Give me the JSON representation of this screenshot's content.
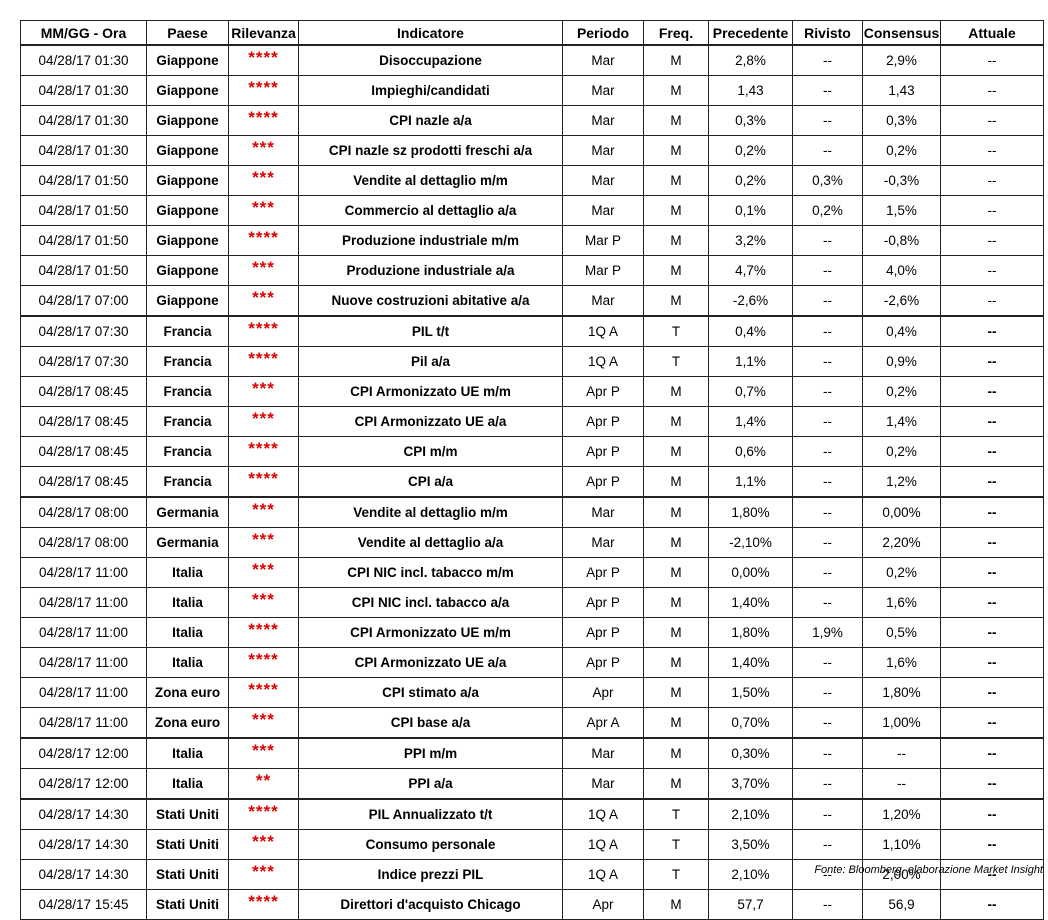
{
  "table": {
    "header": [
      "MM/GG - Ora",
      "Paese",
      "Rilevanza",
      "Indicatore",
      "Periodo",
      "Freq.",
      "Precedente",
      "Rivisto",
      "Consensus",
      "Attuale"
    ],
    "rows": [
      [
        "04/28/17 01:30",
        "Giappone",
        "****",
        "Disoccupazione",
        "Mar",
        "M",
        "2,8%",
        "--",
        "2,9%",
        "--"
      ],
      [
        "04/28/17 01:30",
        "Giappone",
        "****",
        "Impieghi/candidati",
        "Mar",
        "M",
        "1,43",
        "--",
        "1,43",
        "--"
      ],
      [
        "04/28/17 01:30",
        "Giappone",
        "****",
        "CPI nazle a/a",
        "Mar",
        "M",
        "0,3%",
        "--",
        "0,3%",
        "--"
      ],
      [
        "04/28/17 01:30",
        "Giappone",
        "***",
        "CPI nazle sz prodotti freschi a/a",
        "Mar",
        "M",
        "0,2%",
        "--",
        "0,2%",
        "--"
      ],
      [
        "04/28/17 01:50",
        "Giappone",
        "***",
        "Vendite al dettaglio m/m",
        "Mar",
        "M",
        "0,2%",
        "0,3%",
        "-0,3%",
        "--"
      ],
      [
        "04/28/17 01:50",
        "Giappone",
        "***",
        "Commercio al dettaglio a/a",
        "Mar",
        "M",
        "0,1%",
        "0,2%",
        "1,5%",
        "--"
      ],
      [
        "04/28/17 01:50",
        "Giappone",
        "****",
        "Produzione industriale m/m",
        "Mar P",
        "M",
        "3,2%",
        "--",
        "-0,8%",
        "--"
      ],
      [
        "04/28/17 01:50",
        "Giappone",
        "***",
        "Produzione industriale a/a",
        "Mar P",
        "M",
        "4,7%",
        "--",
        "4,0%",
        "--"
      ],
      [
        "04/28/17 07:00",
        "Giappone",
        "***",
        "Nuove costruzioni abitative a/a",
        "Mar",
        "M",
        "-2,6%",
        "--",
        "-2,6%",
        "--"
      ],
      [
        "04/28/17 07:30",
        "Francia",
        "****",
        "PIL t/t",
        "1Q A",
        "T",
        "0,4%",
        "--",
        "0,4%",
        "--"
      ],
      [
        "04/28/17 07:30",
        "Francia",
        "****",
        "Pil a/a",
        "1Q A",
        "T",
        "1,1%",
        "--",
        "0,9%",
        "--"
      ],
      [
        "04/28/17 08:45",
        "Francia",
        "***",
        "CPI Armonizzato UE m/m",
        "Apr P",
        "M",
        "0,7%",
        "--",
        "0,2%",
        "--"
      ],
      [
        "04/28/17 08:45",
        "Francia",
        "***",
        "CPI Armonizzato UE a/a",
        "Apr P",
        "M",
        "1,4%",
        "--",
        "1,4%",
        "--"
      ],
      [
        "04/28/17 08:45",
        "Francia",
        "****",
        "CPI m/m",
        "Apr P",
        "M",
        "0,6%",
        "--",
        "0,2%",
        "--"
      ],
      [
        "04/28/17 08:45",
        "Francia",
        "****",
        "CPI a/a",
        "Apr P",
        "M",
        "1,1%",
        "--",
        "1,2%",
        "--"
      ],
      [
        "04/28/17 08:00",
        "Germania",
        "***",
        "Vendite al dettaglio m/m",
        "Mar",
        "M",
        "1,80%",
        "--",
        "0,00%",
        "--"
      ],
      [
        "04/28/17 08:00",
        "Germania",
        "***",
        "Vendite al dettaglio a/a",
        "Mar",
        "M",
        "-2,10%",
        "--",
        "2,20%",
        "--"
      ],
      [
        "04/28/17 11:00",
        "Italia",
        "***",
        "CPI NIC incl. tabacco m/m",
        "Apr P",
        "M",
        "0,00%",
        "--",
        "0,2%",
        "--"
      ],
      [
        "04/28/17 11:00",
        "Italia",
        "***",
        "CPI NIC incl. tabacco a/a",
        "Apr P",
        "M",
        "1,40%",
        "--",
        "1,6%",
        "--"
      ],
      [
        "04/28/17 11:00",
        "Italia",
        "****",
        "CPI Armonizzato UE m/m",
        "Apr P",
        "M",
        "1,80%",
        "1,9%",
        "0,5%",
        "--"
      ],
      [
        "04/28/17 11:00",
        "Italia",
        "****",
        "CPI Armonizzato UE a/a",
        "Apr P",
        "M",
        "1,40%",
        "--",
        "1,6%",
        "--"
      ],
      [
        "04/28/17 11:00",
        "Zona euro",
        "****",
        "CPI stimato a/a",
        "Apr",
        "M",
        "1,50%",
        "--",
        "1,80%",
        "--"
      ],
      [
        "04/28/17 11:00",
        "Zona euro",
        "***",
        "CPI base a/a",
        "Apr A",
        "M",
        "0,70%",
        "--",
        "1,00%",
        "--"
      ],
      [
        "04/28/17 12:00",
        "Italia",
        "***",
        "PPI m/m",
        "Mar",
        "M",
        "0,30%",
        "--",
        "--",
        "--"
      ],
      [
        "04/28/17 12:00",
        "Italia",
        "**",
        "PPI a/a",
        "Mar",
        "M",
        "3,70%",
        "--",
        "--",
        "--"
      ],
      [
        "04/28/17 14:30",
        "Stati Uniti",
        "****",
        "PIL Annualizzato t/t",
        "1Q A",
        "T",
        "2,10%",
        "--",
        "1,20%",
        "--"
      ],
      [
        "04/28/17 14:30",
        "Stati Uniti",
        "***",
        "Consumo personale",
        "1Q A",
        "T",
        "3,50%",
        "--",
        "1,10%",
        "--"
      ],
      [
        "04/28/17 14:30",
        "Stati Uniti",
        "***",
        "Indice prezzi PIL",
        "1Q A",
        "T",
        "2,10%",
        "--",
        "2,00%",
        "--"
      ],
      [
        "04/28/17 15:45",
        "Stati Uniti",
        "****",
        "Direttori d'acquisto Chicago",
        "Apr",
        "M",
        "57,7",
        "--",
        "56,9",
        "--"
      ]
    ]
  },
  "source": "Fonte: Bloomberg, elaborazione Market Insight"
}
